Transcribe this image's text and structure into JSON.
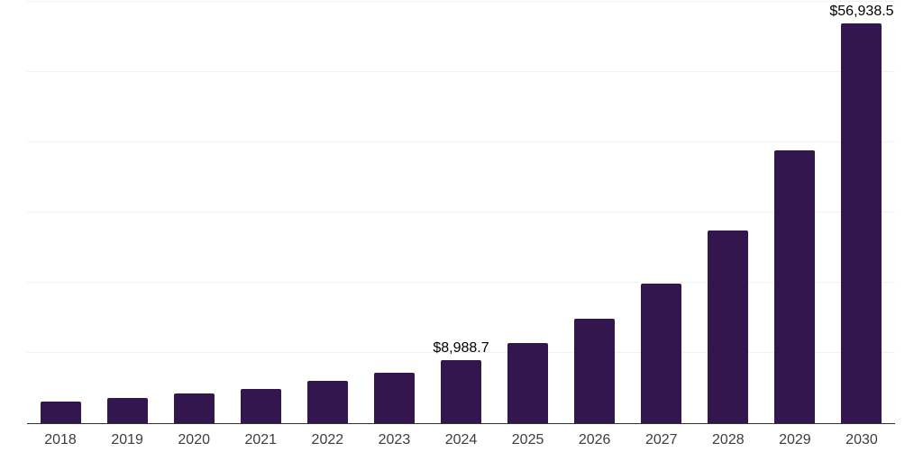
{
  "chart_data": {
    "type": "bar",
    "title": "",
    "xlabel": "",
    "ylabel": "",
    "categories": [
      "2018",
      "2019",
      "2020",
      "2021",
      "2022",
      "2023",
      "2024",
      "2025",
      "2026",
      "2027",
      "2028",
      "2029",
      "2030"
    ],
    "values": [
      3050,
      3550,
      4200,
      4850,
      6000,
      7150,
      8988.7,
      11400,
      14900,
      19900,
      27400,
      38900,
      56938.5
    ],
    "data_labels": {
      "2024": "$8,988.7",
      "2030": "$56,938.5"
    },
    "ylim": [
      0,
      60000
    ],
    "gridline_interval": 10000,
    "grid": "horizontal",
    "legend": "none",
    "y_tick_labels_visible": false,
    "colors": {
      "bar": "#33164e",
      "axis_line": "#333333",
      "gridline": "#f2f2f2",
      "tick_label": "#3d3d3d",
      "data_label": "#000000",
      "background": "#ffffff"
    }
  }
}
